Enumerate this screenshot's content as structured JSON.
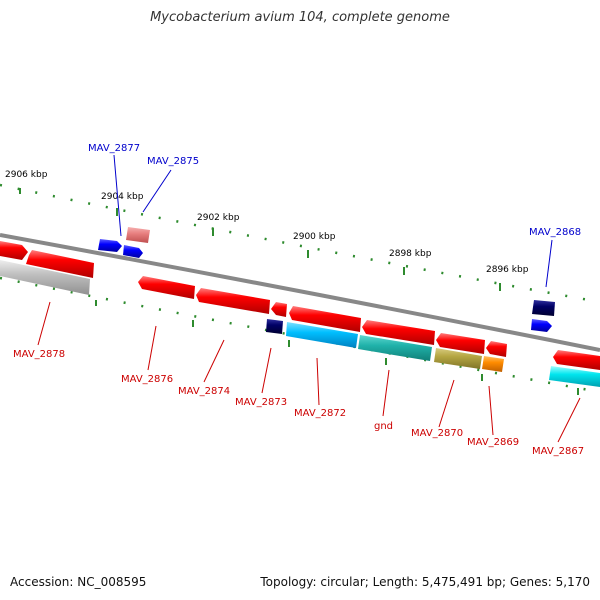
{
  "title": "Mycobacterium avium 104, complete genome",
  "accession": "Accession: NC_008595",
  "topology": "Topology: circular; Length: 5,475,491 bp; Genes: 5,170",
  "colors": {
    "backbone": "#888888",
    "tick": "#2e8b2e",
    "label_top": "#0000cc",
    "label_bottom": "#cc0000",
    "gene_red": "#ff0000",
    "gene_blue": "#0000ff",
    "gene_navy": "#000066",
    "gene_pink": "#f08080",
    "gene_cyan": "#00bfff",
    "gene_teal": "#20b2aa",
    "gene_olive": "#b5a642",
    "gene_orange": "#ff8c00",
    "gene_aqua": "#00e5ee",
    "gene_gray": "#bbbbbb"
  },
  "kbp_labels": [
    {
      "id": "kbp-2906",
      "text": "2906 kbp"
    },
    {
      "id": "kbp-2904",
      "text": "2904 kbp"
    },
    {
      "id": "kbp-2902",
      "text": "2902 kbp"
    },
    {
      "id": "kbp-2900",
      "text": "2900 kbp"
    },
    {
      "id": "kbp-2898",
      "text": "2898 kbp"
    },
    {
      "id": "kbp-2896",
      "text": "2896 kbp"
    }
  ],
  "gene_labels_top": [
    {
      "id": "MAV_2877",
      "text": "MAV_2877"
    },
    {
      "id": "MAV_2875",
      "text": "MAV_2875"
    },
    {
      "id": "MAV_2868",
      "text": "MAV_2868"
    }
  ],
  "gene_labels_bottom": [
    {
      "id": "MAV_2878",
      "text": "MAV_2878"
    },
    {
      "id": "MAV_2876",
      "text": "MAV_2876"
    },
    {
      "id": "MAV_2874",
      "text": "MAV_2874"
    },
    {
      "id": "MAV_2873",
      "text": "MAV_2873"
    },
    {
      "id": "MAV_2872",
      "text": "MAV_2872"
    },
    {
      "id": "gnd",
      "text": "gnd"
    },
    {
      "id": "MAV_2870",
      "text": "MAV_2870"
    },
    {
      "id": "MAV_2869",
      "text": "MAV_2869"
    },
    {
      "id": "MAV_2867",
      "text": "MAV_2867"
    }
  ]
}
